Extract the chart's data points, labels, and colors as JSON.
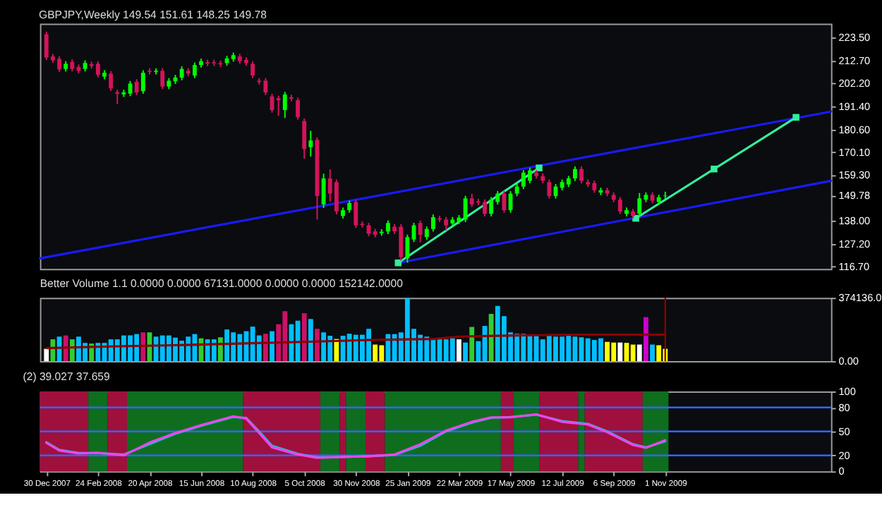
{
  "chart_data": [
    {
      "type": "candlestick",
      "title": "GBPJPY,Weekly 149.54 151.61 148.25 149.78",
      "x": [
        "2007-12-30",
        "2008-01-06",
        "2008-01-13",
        "2008-01-20",
        "2008-01-27",
        "2008-02-03",
        "2008-02-10",
        "2008-02-17",
        "2008-02-24",
        "2008-03-02",
        "2008-03-09",
        "2008-03-16",
        "2008-03-23",
        "2008-03-30",
        "2008-04-06",
        "2008-04-13",
        "2008-04-20",
        "2008-04-27",
        "2008-05-04",
        "2008-05-11",
        "2008-05-18",
        "2008-05-25",
        "2008-06-01",
        "2008-06-08",
        "2008-06-15",
        "2008-06-22",
        "2008-06-29",
        "2008-07-06",
        "2008-07-13",
        "2008-07-20",
        "2008-07-27",
        "2008-08-03",
        "2008-08-10",
        "2008-08-17",
        "2008-08-24",
        "2008-08-31",
        "2008-09-07",
        "2008-09-14",
        "2008-09-21",
        "2008-09-28",
        "2008-10-05",
        "2008-10-12",
        "2008-10-19",
        "2008-10-26",
        "2008-11-02",
        "2008-11-09",
        "2008-11-16",
        "2008-11-23",
        "2008-11-30",
        "2008-12-07",
        "2008-12-14",
        "2008-12-21",
        "2008-12-28",
        "2009-01-04",
        "2009-01-11",
        "2009-01-18",
        "2009-01-25",
        "2009-02-01",
        "2009-02-08",
        "2009-02-15",
        "2009-02-22",
        "2009-03-01",
        "2009-03-08",
        "2009-03-15",
        "2009-03-22",
        "2009-03-29",
        "2009-04-05",
        "2009-04-12",
        "2009-04-19",
        "2009-04-26",
        "2009-05-03",
        "2009-05-10",
        "2009-05-17",
        "2009-05-24",
        "2009-05-31",
        "2009-06-07",
        "2009-06-14",
        "2009-06-21",
        "2009-06-28",
        "2009-07-05",
        "2009-07-12",
        "2009-07-19",
        "2009-07-26",
        "2009-08-02",
        "2009-08-09",
        "2009-08-16",
        "2009-08-23",
        "2009-08-30",
        "2009-09-06",
        "2009-09-13",
        "2009-09-20",
        "2009-09-27",
        "2009-10-04",
        "2009-10-11",
        "2009-10-18",
        "2009-10-25",
        "2009-11-01"
      ],
      "ohlc": [
        [
          225.1,
          226.3,
          213.0,
          214.2
        ],
        [
          214.7,
          215.9,
          211.7,
          212.9
        ],
        [
          213.6,
          214.8,
          207.5,
          208.7
        ],
        [
          208.9,
          212.5,
          207.7,
          211.3
        ],
        [
          212.2,
          213.4,
          207.7,
          208.9
        ],
        [
          209.8,
          211.0,
          206.8,
          208.0
        ],
        [
          208.9,
          212.9,
          207.7,
          211.7
        ],
        [
          211.1,
          212.3,
          209.1,
          210.3
        ],
        [
          211.3,
          212.5,
          204.9,
          206.1
        ],
        [
          205.3,
          208.3,
          204.1,
          207.1
        ],
        [
          206.7,
          207.9,
          198.6,
          199.8
        ],
        [
          198.0,
          199.2,
          192.5,
          197.3
        ],
        [
          197.0,
          199.2,
          195.8,
          198.0
        ],
        [
          197.4,
          203.3,
          196.2,
          202.1
        ],
        [
          202.9,
          204.1,
          196.7,
          197.9
        ],
        [
          198.5,
          208.3,
          197.3,
          207.1
        ],
        [
          208.0,
          209.2,
          206.3,
          207.5
        ],
        [
          207.5,
          209.2,
          206.3,
          208.0
        ],
        [
          208.0,
          209.2,
          199.5,
          200.7
        ],
        [
          200.7,
          204.6,
          199.5,
          203.4
        ],
        [
          203.1,
          206.1,
          201.9,
          204.9
        ],
        [
          204.8,
          210.1,
          203.6,
          208.9
        ],
        [
          208.0,
          209.2,
          205.5,
          206.7
        ],
        [
          205.8,
          211.9,
          204.6,
          210.7
        ],
        [
          210.7,
          213.7,
          209.5,
          212.5
        ],
        [
          212.0,
          213.2,
          210.2,
          211.4
        ],
        [
          212.0,
          213.2,
          210.3,
          211.5
        ],
        [
          211.6,
          212.8,
          209.8,
          211.0
        ],
        [
          211.6,
          215.0,
          210.4,
          213.8
        ],
        [
          213.5,
          216.5,
          212.3,
          215.3
        ],
        [
          214.7,
          215.9,
          211.3,
          212.5
        ],
        [
          213.1,
          214.3,
          210.4,
          211.6
        ],
        [
          211.3,
          212.5,
          204.6,
          205.8
        ],
        [
          203.4,
          204.6,
          201.6,
          202.8
        ],
        [
          203.4,
          204.6,
          196.7,
          197.9
        ],
        [
          196.1,
          197.3,
          188.5,
          189.7
        ],
        [
          195.2,
          196.4,
          187.0,
          194.3
        ],
        [
          189.7,
          198.2,
          186.0,
          197.0
        ],
        [
          195.6,
          196.8,
          193.8,
          195.0
        ],
        [
          194.3,
          195.5,
          185.2,
          186.4
        ],
        [
          184.6,
          185.8,
          167.0,
          171.5
        ],
        [
          172.4,
          180.0,
          168.0,
          175.5
        ],
        [
          175.8,
          177.0,
          138.6,
          149.6
        ],
        [
          145.7,
          160.0,
          144.0,
          157.8
        ],
        [
          157.8,
          162.0,
          147.0,
          150.7
        ],
        [
          156.1,
          157.3,
          141.0,
          142.4
        ],
        [
          140.3,
          144.2,
          139.1,
          143.0
        ],
        [
          143.0,
          147.5,
          141.8,
          146.3
        ],
        [
          146.8,
          148.0,
          134.7,
          135.9
        ],
        [
          136.6,
          137.8,
          134.9,
          136.1
        ],
        [
          135.9,
          137.1,
          130.8,
          132.0
        ],
        [
          133.1,
          134.3,
          130.3,
          131.5
        ],
        [
          132.3,
          134.1,
          131.1,
          132.9
        ],
        [
          133.0,
          138.2,
          131.8,
          137.0
        ],
        [
          135.3,
          136.5,
          131.9,
          133.1
        ],
        [
          135.3,
          136.5,
          119.5,
          121.1
        ],
        [
          120.5,
          131.6,
          118.5,
          130.4
        ],
        [
          129.3,
          137.1,
          128.1,
          135.9
        ],
        [
          137.0,
          138.2,
          128.0,
          131.5
        ],
        [
          130.4,
          135.4,
          129.2,
          134.2
        ],
        [
          134.2,
          141.0,
          133.0,
          139.7
        ],
        [
          139.2,
          140.4,
          137.4,
          138.6
        ],
        [
          138.6,
          139.8,
          133.5,
          135.9
        ],
        [
          136.8,
          139.8,
          135.6,
          138.6
        ],
        [
          137.7,
          140.7,
          136.5,
          139.5
        ],
        [
          138.6,
          149.7,
          137.4,
          148.5
        ],
        [
          148.5,
          150.7,
          144.5,
          145.7
        ],
        [
          147.1,
          148.3,
          145.3,
          146.5
        ],
        [
          146.8,
          148.0,
          140.1,
          141.3
        ],
        [
          141.3,
          149.1,
          140.1,
          147.9
        ],
        [
          146.8,
          151.9,
          145.6,
          150.7
        ],
        [
          150.7,
          151.9,
          141.8,
          143.0
        ],
        [
          143.0,
          151.9,
          141.8,
          150.7
        ],
        [
          150.7,
          155.2,
          149.5,
          154.0
        ],
        [
          154.0,
          161.7,
          152.8,
          160.5
        ],
        [
          156.7,
          162.8,
          155.5,
          161.6
        ],
        [
          160.5,
          161.7,
          157.7,
          158.9
        ],
        [
          158.9,
          160.1,
          155.5,
          156.7
        ],
        [
          156.1,
          157.3,
          148.4,
          149.6
        ],
        [
          149.6,
          155.2,
          148.4,
          154.0
        ],
        [
          153.4,
          157.3,
          152.2,
          156.1
        ],
        [
          155.0,
          159.0,
          153.8,
          157.8
        ],
        [
          157.8,
          163.4,
          156.6,
          162.2
        ],
        [
          162.2,
          163.4,
          155.5,
          156.7
        ],
        [
          156.1,
          157.3,
          153.8,
          155.0
        ],
        [
          155.6,
          156.8,
          151.1,
          152.3
        ],
        [
          151.2,
          153.5,
          150.0,
          152.3
        ],
        [
          152.3,
          153.5,
          149.5,
          150.7
        ],
        [
          150.1,
          151.3,
          146.7,
          147.9
        ],
        [
          147.9,
          149.1,
          141.2,
          142.4
        ],
        [
          141.3,
          144.2,
          140.1,
          143.0
        ],
        [
          142.4,
          143.6,
          139.1,
          140.3
        ],
        [
          141.3,
          151.0,
          140.1,
          148.5
        ],
        [
          147.9,
          151.3,
          146.7,
          150.1
        ],
        [
          150.1,
          151.3,
          146.2,
          147.4
        ],
        [
          146.8,
          150.2,
          145.6,
          149.0
        ],
        [
          149.54,
          151.61,
          148.25,
          149.78
        ]
      ],
      "colors": [
        "#d4145a",
        "#d4145a",
        "#d4145a",
        "#00ff00",
        "#d4145a",
        "#d4145a",
        "#00ff00",
        "#d4145a",
        "#d4145a",
        "#00ff00",
        "#d4145a",
        "#d4145a",
        "#00ff00",
        "#00ff00",
        "#d4145a",
        "#00ff00",
        "#d4145a",
        "#00ff00",
        "#d4145a",
        "#00ff00",
        "#00ff00",
        "#00ff00",
        "#d4145a",
        "#00ff00",
        "#00ff00",
        "#d4145a",
        "#d4145a",
        "#d4145a",
        "#00ff00",
        "#00ff00",
        "#d4145a",
        "#d4145a",
        "#d4145a",
        "#d4145a",
        "#d4145a",
        "#d4145a",
        "#d4145a",
        "#00ff00",
        "#d4145a",
        "#d4145a",
        "#d4145a",
        "#00ff00",
        "#d4145a",
        "#00ff00",
        "#d4145a",
        "#d4145a",
        "#00ff00",
        "#00ff00",
        "#d4145a",
        "#d4145a",
        "#d4145a",
        "#d4145a",
        "#00ff00",
        "#00ff00",
        "#d4145a",
        "#d4145a",
        "#00ff00",
        "#00ff00",
        "#d4145a",
        "#00ff00",
        "#00ff00",
        "#d4145a",
        "#d4145a",
        "#00ff00",
        "#00ff00",
        "#00ff00",
        "#d4145a",
        "#d4145a",
        "#d4145a",
        "#00ff00",
        "#00ff00",
        "#d4145a",
        "#00ff00",
        "#00ff00",
        "#00ff00",
        "#00ff00",
        "#d4145a",
        "#d4145a",
        "#d4145a",
        "#00ff00",
        "#00ff00",
        "#00ff00",
        "#00ff00",
        "#d4145a",
        "#d4145a",
        "#d4145a",
        "#00ff00",
        "#d4145a",
        "#d4145a",
        "#d4145a",
        "#00ff00",
        "#d4145a",
        "#00ff00",
        "#00ff00",
        "#d4145a",
        "#00ff00",
        "#00ff00"
      ],
      "series": [
        {
          "type": "line",
          "color": "#1a1aff",
          "x": [
            "2007-12-23",
            "2010-04-30"
          ],
          "values": [
            120.5,
            189.0
          ]
        },
        {
          "type": "line",
          "color": "#1a1aff",
          "x": [
            "2009-01-15",
            "2010-04-30"
          ],
          "values": [
            118.4,
            156.7
          ]
        },
        {
          "type": "line",
          "color": "#33ee99",
          "marker": "square",
          "x": [
            "2009-01-15",
            "2009-06-17"
          ],
          "values": [
            118.4,
            162.7
          ]
        },
        {
          "type": "line",
          "color": "#33ee99",
          "marker": "square",
          "x": [
            "2009-09-30",
            "2009-12-24",
            "2010-03-23"
          ],
          "values": [
            139.2,
            162.2,
            186.3
          ]
        }
      ],
      "xlim": [
        "2007-12-23",
        "2010-04-30"
      ],
      "ylim": [
        115.6,
        230.0
      ],
      "yticks": [
        {
          "value": 116.7,
          "label": "116.70"
        },
        {
          "value": 127.2,
          "label": "127.20"
        },
        {
          "value": 138.0,
          "label": "138.00"
        },
        {
          "value": 149.78,
          "label": "149.78"
        },
        {
          "value": 159.3,
          "label": "159.30"
        },
        {
          "value": 170.1,
          "label": "170.10"
        },
        {
          "value": 180.6,
          "label": "180.60"
        },
        {
          "value": 191.4,
          "label": "191.40"
        },
        {
          "value": 202.2,
          "label": "202.20"
        },
        {
          "value": 212.7,
          "label": "212.70"
        },
        {
          "value": 223.5,
          "label": "223.50"
        }
      ],
      "tick_labels": "y"
    },
    {
      "type": "bar",
      "title": "Better Volume 1.1 0.0000 0.0000 67131.0000 0.0000 0.0000 152142.0000",
      "x": [
        "2007-12-30",
        "2008-01-06",
        "2008-01-13",
        "2008-01-20",
        "2008-01-27",
        "2008-02-03",
        "2008-02-10",
        "2008-02-17",
        "2008-02-24",
        "2008-03-02",
        "2008-03-09",
        "2008-03-16",
        "2008-03-23",
        "2008-03-30",
        "2008-04-06",
        "2008-04-13",
        "2008-04-20",
        "2008-04-27",
        "2008-05-04",
        "2008-05-11",
        "2008-05-18",
        "2008-05-25",
        "2008-06-01",
        "2008-06-08",
        "2008-06-15",
        "2008-06-22",
        "2008-06-29",
        "2008-07-06",
        "2008-07-13",
        "2008-07-20",
        "2008-07-27",
        "2008-08-03",
        "2008-08-10",
        "2008-08-17",
        "2008-08-24",
        "2008-08-31",
        "2008-09-07",
        "2008-09-14",
        "2008-09-21",
        "2008-09-28",
        "2008-10-05",
        "2008-10-12",
        "2008-10-19",
        "2008-10-26",
        "2008-11-02",
        "2008-11-09",
        "2008-11-16",
        "2008-11-23",
        "2008-11-30",
        "2008-12-07",
        "2008-12-14",
        "2008-12-21",
        "2008-12-28",
        "2009-01-04",
        "2009-01-11",
        "2009-01-18",
        "2009-01-25",
        "2009-02-01",
        "2009-02-08",
        "2009-02-15",
        "2009-02-22",
        "2009-03-01",
        "2009-03-08",
        "2009-03-15",
        "2009-03-22",
        "2009-03-29",
        "2009-04-05",
        "2009-04-12",
        "2009-04-19",
        "2009-04-26",
        "2009-05-03",
        "2009-05-10",
        "2009-05-17",
        "2009-05-24",
        "2009-05-31",
        "2009-06-07",
        "2009-06-14",
        "2009-06-21",
        "2009-06-28",
        "2009-07-05",
        "2009-07-12",
        "2009-07-19",
        "2009-07-26",
        "2009-08-02",
        "2009-08-09",
        "2009-08-16",
        "2009-08-23",
        "2009-08-30",
        "2009-09-06",
        "2009-09-13",
        "2009-09-20",
        "2009-09-27",
        "2009-10-04",
        "2009-10-11",
        "2009-10-18",
        "2009-10-25",
        "2009-11-01"
      ],
      "values": [
        73000,
        129000,
        145000,
        152000,
        129000,
        145000,
        108000,
        104000,
        108000,
        108000,
        129000,
        129000,
        152000,
        152000,
        160000,
        170000,
        170000,
        145000,
        152000,
        152000,
        139000,
        121000,
        145000,
        160000,
        135000,
        129000,
        129000,
        141000,
        187000,
        170000,
        160000,
        177000,
        204000,
        152000,
        162000,
        177000,
        218000,
        295000,
        218000,
        239000,
        283000,
        249000,
        191000,
        170000,
        150000,
        131000,
        150000,
        162000,
        156000,
        156000,
        191000,
        98000,
        94000,
        160000,
        160000,
        170000,
        374136,
        191000,
        156000,
        145000,
        135000,
        135000,
        129000,
        135000,
        129000,
        110000,
        202000,
        118000,
        208000,
        279000,
        326000,
        266000,
        170000,
        162000,
        162000,
        150000,
        150000,
        129000,
        150000,
        145000,
        145000,
        150000,
        145000,
        141000,
        135000,
        125000,
        135000,
        114000,
        110000,
        110000,
        108000,
        98000,
        98000,
        260000,
        98000,
        94000,
        73000
      ],
      "colors": [
        "#ffffff",
        "#32cd32",
        "#00bfff",
        "#cc1166",
        "#32cd32",
        "#00bfff",
        "#00bfff",
        "#32cd32",
        "#00bfff",
        "#00bfff",
        "#00bfff",
        "#00bfff",
        "#00bfff",
        "#00bfff",
        "#00bfff",
        "#cc1166",
        "#32cd32",
        "#00bfff",
        "#00bfff",
        "#00bfff",
        "#00bfff",
        "#00bfff",
        "#00bfff",
        "#00bfff",
        "#32cd32",
        "#00bfff",
        "#00bfff",
        "#32cd32",
        "#00bfff",
        "#00bfff",
        "#00bfff",
        "#00bfff",
        "#00bfff",
        "#00bfff",
        "#cc1166",
        "#00bfff",
        "#cc1166",
        "#cc1166",
        "#00bfff",
        "#00bfff",
        "#cc1166",
        "#00bfff",
        "#cc1166",
        "#00bfff",
        "#00bfff",
        "#ffff00",
        "#00bfff",
        "#00bfff",
        "#00bfff",
        "#00bfff",
        "#00bfff",
        "#ffff00",
        "#ffff00",
        "#00bfff",
        "#00bfff",
        "#00bfff",
        "#00bfff",
        "#00bfff",
        "#00bfff",
        "#00bfff",
        "#00bfff",
        "#00bfff",
        "#00bfff",
        "#00bfff",
        "#ffffff",
        "#00bfff",
        "#32cd32",
        "#00bfff",
        "#00bfff",
        "#32cd32",
        "#00bfff",
        "#00bfff",
        "#00bfff",
        "#00bfff",
        "#00bfff",
        "#00bfff",
        "#00bfff",
        "#00bfff",
        "#00bfff",
        "#00bfff",
        "#00bfff",
        "#00bfff",
        "#00bfff",
        "#00bfff",
        "#00bfff",
        "#00bfff",
        "#00bfff",
        "#ffff00",
        "#ffff00",
        "#ffffff",
        "#ffff00",
        "#ffff00",
        "#ffffff",
        "#cc00cc",
        "#00bfff",
        "#ffff00",
        "#ffff00"
      ],
      "series": [
        {
          "type": "line",
          "color": "#8b0000",
          "x": [
            "2007-12-30",
            "2008-03-09",
            "2008-05-18",
            "2008-07-27",
            "2008-10-05",
            "2008-12-14",
            "2009-02-22",
            "2009-03-22",
            "2009-05-03",
            "2009-07-12",
            "2009-11-01"
          ],
          "values": [
            77000,
            87000,
            94000,
            104000,
            114000,
            125000,
            131000,
            145000,
            150000,
            156000,
            156000
          ]
        }
      ],
      "ref_lines": [
        {
          "axis": "x",
          "value": "2009-11-01",
          "color": "#8b0000"
        }
      ],
      "xlim": [
        "2007-12-23",
        "2010-04-30"
      ],
      "ylim": [
        0,
        374136
      ],
      "yticks": [
        {
          "value": 0,
          "label": "0.00"
        },
        {
          "value": 374136,
          "label": "374136.0"
        }
      ],
      "tick_labels": "y"
    },
    {
      "type": "line",
      "title": "(2) 39.027 37.659",
      "series": [
        {
          "color": "#22b8c8",
          "x": [
            "2007-12-30",
            "2008-01-13",
            "2008-02-03",
            "2008-02-24",
            "2008-03-23",
            "2008-04-20",
            "2008-05-18",
            "2008-06-15",
            "2008-07-20",
            "2008-08-03",
            "2008-08-17",
            "2008-08-31",
            "2008-09-28",
            "2008-10-19",
            "2008-11-16",
            "2008-12-14",
            "2009-01-11",
            "2009-02-08",
            "2009-03-08",
            "2009-04-05",
            "2009-04-26",
            "2009-05-17",
            "2009-06-14",
            "2009-07-12",
            "2009-08-09",
            "2009-08-30",
            "2009-09-27",
            "2009-10-11",
            "2009-11-01"
          ],
          "values": [
            36.5,
            27,
            23,
            23,
            21,
            34,
            47,
            57,
            68,
            67,
            50,
            32,
            22,
            17.5,
            18,
            19,
            20.5,
            32,
            50,
            61,
            67,
            68,
            71,
            63,
            59.5,
            50,
            34,
            30,
            37.7
          ]
        },
        {
          "color": "#ee44ee",
          "x": [
            "2007-12-30",
            "2008-01-13",
            "2008-02-03",
            "2008-02-24",
            "2008-03-23",
            "2008-04-20",
            "2008-05-18",
            "2008-06-15",
            "2008-07-20",
            "2008-08-03",
            "2008-08-17",
            "2008-08-31",
            "2008-09-28",
            "2008-10-19",
            "2008-11-16",
            "2008-12-14",
            "2009-01-11",
            "2009-02-08",
            "2009-03-08",
            "2009-04-05",
            "2009-04-26",
            "2009-05-17",
            "2009-06-14",
            "2009-07-12",
            "2009-08-09",
            "2009-08-30",
            "2009-09-27",
            "2009-10-11",
            "2009-11-01"
          ],
          "values": [
            35.7,
            26,
            22.4,
            23.3,
            20,
            36,
            48,
            58,
            69,
            66,
            48,
            30,
            21,
            17,
            18,
            19,
            21,
            34,
            51,
            62,
            67.6,
            67.6,
            71.4,
            62,
            58.6,
            49,
            33,
            29.5,
            39.0
          ]
        }
      ],
      "bands": [
        {
          "axis": "x",
          "from": "2007-12-23",
          "to": "2008-02-13T12:00",
          "color": "#a0103c"
        },
        {
          "axis": "x",
          "from": "2008-02-13T12:00",
          "to": "2008-03-05T12:00",
          "color": "#0f6e1e"
        },
        {
          "axis": "x",
          "from": "2008-03-05T12:00",
          "to": "2008-03-26T12:00",
          "color": "#a0103c"
        },
        {
          "axis": "x",
          "from": "2008-03-26T12:00",
          "to": "2008-07-30T12:00",
          "color": "#0f6e1e"
        },
        {
          "axis": "x",
          "from": "2008-07-30T12:00",
          "to": "2008-10-22T12:00",
          "color": "#a0103c"
        },
        {
          "axis": "x",
          "from": "2008-10-22T12:00",
          "to": "2008-11-12T12:00",
          "color": "#0f6e1e"
        },
        {
          "axis": "x",
          "from": "2008-11-12T12:00",
          "to": "2008-11-19T12:00",
          "color": "#a0103c"
        },
        {
          "axis": "x",
          "from": "2008-11-19T12:00",
          "to": "2008-12-10T12:00",
          "color": "#0f6e1e"
        },
        {
          "axis": "x",
          "from": "2008-12-10T12:00",
          "to": "2008-12-31T12:00",
          "color": "#a0103c"
        },
        {
          "axis": "x",
          "from": "2008-12-31T12:00",
          "to": "2009-05-06T12:00",
          "color": "#0f6e1e"
        },
        {
          "axis": "x",
          "from": "2009-05-06T12:00",
          "to": "2009-05-20T12:00",
          "color": "#a0103c"
        },
        {
          "axis": "x",
          "from": "2009-05-20T12:00",
          "to": "2009-06-17T12:00",
          "color": "#0f6e1e"
        },
        {
          "axis": "x",
          "from": "2009-06-17T12:00",
          "to": "2009-07-29T12:00",
          "color": "#a0103c"
        },
        {
          "axis": "x",
          "from": "2009-07-29T12:00",
          "to": "2009-08-05T12:00",
          "color": "#0f6e1e"
        },
        {
          "axis": "x",
          "from": "2009-08-05T12:00",
          "to": "2009-10-07T12:00",
          "color": "#a0103c"
        },
        {
          "axis": "x",
          "from": "2009-10-07T12:00",
          "to": "2009-11-04T12:00",
          "color": "#0f6e1e"
        }
      ],
      "ref_lines": [
        {
          "axis": "y",
          "value": 80,
          "color": "#3366ff"
        },
        {
          "axis": "y",
          "value": 50,
          "color": "#3366ff"
        },
        {
          "axis": "y",
          "value": 20,
          "color": "#3366ff"
        }
      ],
      "xlim": [
        "2007-12-23",
        "2010-04-30"
      ],
      "ylim": [
        0,
        100
      ],
      "yticks": [
        0,
        20,
        50,
        80,
        100
      ],
      "xticks": [
        {
          "value": "2007-12-30",
          "label": "30 Dec 2007"
        },
        {
          "value": "2008-02-24",
          "label": "24 Feb 2008"
        },
        {
          "value": "2008-04-20",
          "label": "20 Apr 2008"
        },
        {
          "value": "2008-06-15",
          "label": "15 Jun 2008"
        },
        {
          "value": "2008-08-10",
          "label": "10 Aug 2008"
        },
        {
          "value": "2008-10-05",
          "label": "5 Oct 2008"
        },
        {
          "value": "2008-11-30",
          "label": "30 Nov 2008"
        },
        {
          "value": "2009-01-25",
          "label": "25 Jan 2009"
        },
        {
          "value": "2009-03-22",
          "label": "22 Mar 2009"
        },
        {
          "value": "2009-05-17",
          "label": "17 May 2009"
        },
        {
          "value": "2009-07-12",
          "label": "12 Jul 2009"
        },
        {
          "value": "2009-09-06",
          "label": "6 Sep 2009"
        },
        {
          "value": "2009-11-01",
          "label": "1 Nov 2009"
        }
      ]
    }
  ]
}
